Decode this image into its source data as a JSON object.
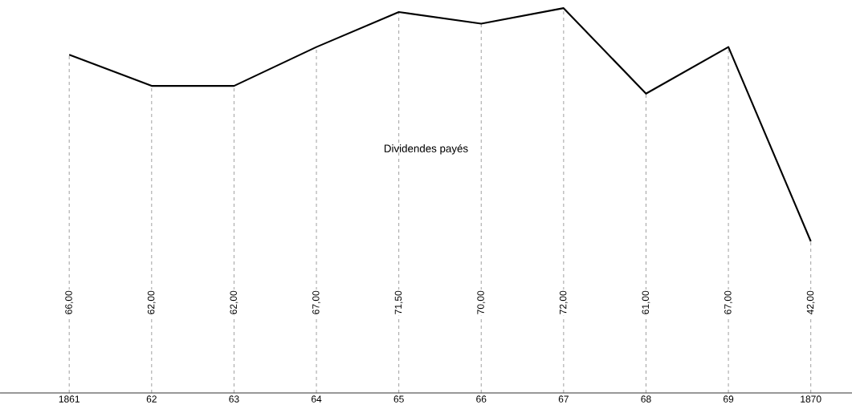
{
  "chart_data": {
    "type": "line",
    "categories": [
      "1861",
      "62",
      "63",
      "64",
      "65",
      "66",
      "67",
      "68",
      "69",
      "1870"
    ],
    "values": [
      66,
      62,
      62,
      67,
      71.5,
      70,
      72,
      61,
      67,
      42
    ],
    "value_labels": [
      "66,00",
      "62,00",
      "62,00",
      "67,00",
      "71,50",
      "70,00",
      "72,00",
      "61,00",
      "67,00",
      "42,00"
    ],
    "color": "#000000",
    "grid": "x",
    "line_style": "solid",
    "marker": "none",
    "annotations": [
      "Dividendes payés"
    ]
  }
}
